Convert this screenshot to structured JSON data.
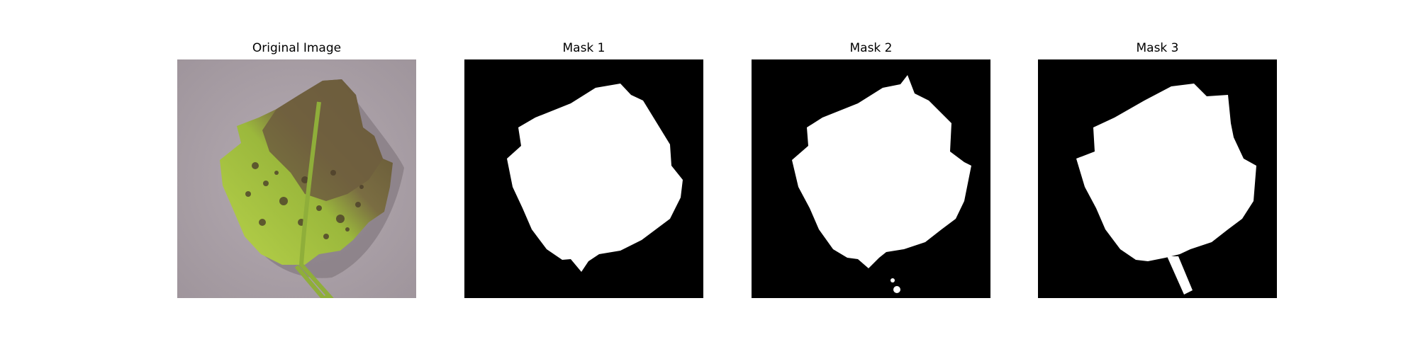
{
  "panels": [
    {
      "title": "Original Image"
    },
    {
      "title": "Mask 1"
    },
    {
      "title": "Mask 2"
    },
    {
      "title": "Mask 3"
    }
  ],
  "colors": {
    "background_photo": "#b3a8b0",
    "leaf_green": "#a8c542",
    "leaf_brown": "#6b5a3a",
    "mask_foreground": "#ffffff",
    "mask_background": "#000000"
  }
}
